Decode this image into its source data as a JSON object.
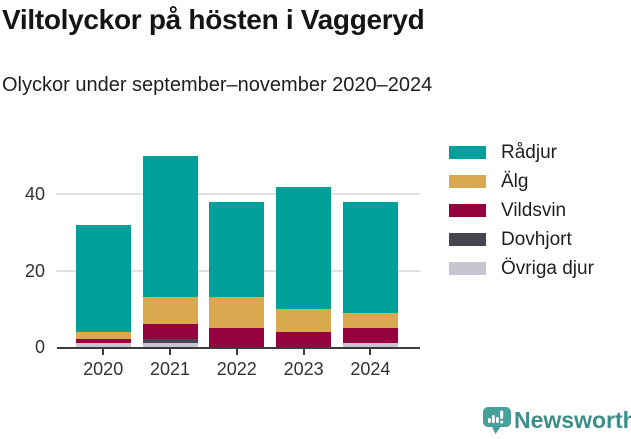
{
  "title": "Viltolyckor på hösten i Vaggeryd",
  "subtitle": "Olyckor under september–november 2020–2024",
  "chart_data": {
    "type": "bar",
    "stacked": true,
    "title": "Viltolyckor på hösten i Vaggeryd",
    "subtitle": "Olyckor under september–november 2020–2024",
    "categories": [
      "2020",
      "2021",
      "2022",
      "2023",
      "2024"
    ],
    "series": [
      {
        "name": "Rådjur",
        "color": "#00a09a",
        "values": [
          28,
          37,
          25,
          32,
          29
        ]
      },
      {
        "name": "Älg",
        "color": "#d9a950",
        "values": [
          2,
          7,
          8,
          6,
          4
        ]
      },
      {
        "name": "Vildsvin",
        "color": "#95003e",
        "values": [
          1,
          4,
          5,
          4,
          4
        ]
      },
      {
        "name": "Dovhjort",
        "color": "#47464f",
        "values": [
          0,
          1,
          0,
          0,
          0
        ]
      },
      {
        "name": "Övriga djur",
        "color": "#c6c5d0",
        "values": [
          1,
          1,
          0,
          0,
          1
        ]
      }
    ],
    "totals": [
      32,
      50,
      38,
      42,
      38
    ],
    "y_ticks": [
      0,
      20,
      40
    ],
    "ylim": [
      0,
      51
    ],
    "xlabel": "",
    "ylabel": "",
    "grid": "horizontal",
    "legend_position": "right"
  },
  "colors": {
    "axis": "#3b3b3b",
    "gridline": "#e0e0e0",
    "tick_text": "#333333",
    "brand_teal": "#3a9089",
    "brand_icon": "#47a09a"
  },
  "footer": {
    "brand": "Newsworthy"
  }
}
